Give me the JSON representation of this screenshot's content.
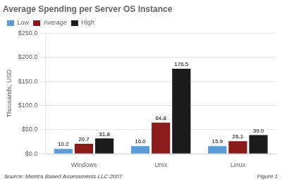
{
  "chart_data": {
    "type": "bar",
    "title": "Average Spending per Server OS Instance",
    "categories": [
      "Windows",
      "Unix",
      "Linux"
    ],
    "series": [
      {
        "name": "Low",
        "color": "#5b9bd5",
        "values": [
          10.2,
          16.0,
          15.9
        ],
        "value_labels": [
          "10.2",
          "16.0",
          "15.9"
        ]
      },
      {
        "name": "Average",
        "color": "#8b1a1a",
        "values": [
          20.7,
          64.8,
          26.1
        ],
        "value_labels": [
          "20.7",
          "64.8",
          "26.1"
        ]
      },
      {
        "name": "High",
        "color": "#1c1c1c",
        "values": [
          31.8,
          176.5,
          39.0
        ],
        "value_labels": [
          "31.8",
          "176.5",
          "39.0"
        ]
      }
    ],
    "ylabel": "Thousands, USD",
    "ylim": [
      0,
      250
    ],
    "yticks": [
      {
        "value": 0,
        "label": "$0.0"
      },
      {
        "value": 50,
        "label": "$50.0"
      },
      {
        "value": 100,
        "label": "$100.0"
      },
      {
        "value": 150,
        "label": "$150.0"
      },
      {
        "value": 200,
        "label": "$200.0"
      },
      {
        "value": 250,
        "label": "$250.0"
      }
    ],
    "grid": true,
    "legend": "upper left",
    "data_labels": true,
    "annotations": [
      "Source: Metrics Based Assessments LLC 2007",
      "Figure 1"
    ]
  }
}
